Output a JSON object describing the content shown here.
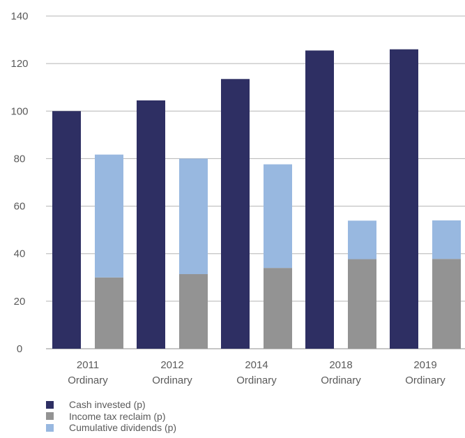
{
  "chart_data": {
    "type": "bar",
    "stacked_groups": true,
    "categories": [
      [
        "2011",
        "Ordinary"
      ],
      [
        "2012",
        "Ordinary"
      ],
      [
        "2014",
        "Ordinary"
      ],
      [
        "2018",
        "Ordinary"
      ],
      [
        "2019",
        "Ordinary"
      ]
    ],
    "series": [
      {
        "name": "Cash invested (p)",
        "stack": "cash",
        "color": "#2e2f63",
        "values": [
          100,
          104.5,
          113.5,
          125.5,
          126
        ]
      },
      {
        "name": "Income tax reclaim (p)",
        "stack": "returns",
        "color": "#939393",
        "values": [
          30,
          31.4,
          34,
          37.7,
          37.8
        ]
      },
      {
        "name": "Cumulative dividends (p)",
        "stack": "returns",
        "color": "#98b8e0",
        "values": [
          51.7,
          48.6,
          43.6,
          16.2,
          16.2
        ]
      }
    ],
    "ylim": [
      0,
      140
    ],
    "yticks": [
      0,
      20,
      40,
      60,
      80,
      100,
      120,
      140
    ],
    "grid": true,
    "legend_position": "bottom-left"
  }
}
